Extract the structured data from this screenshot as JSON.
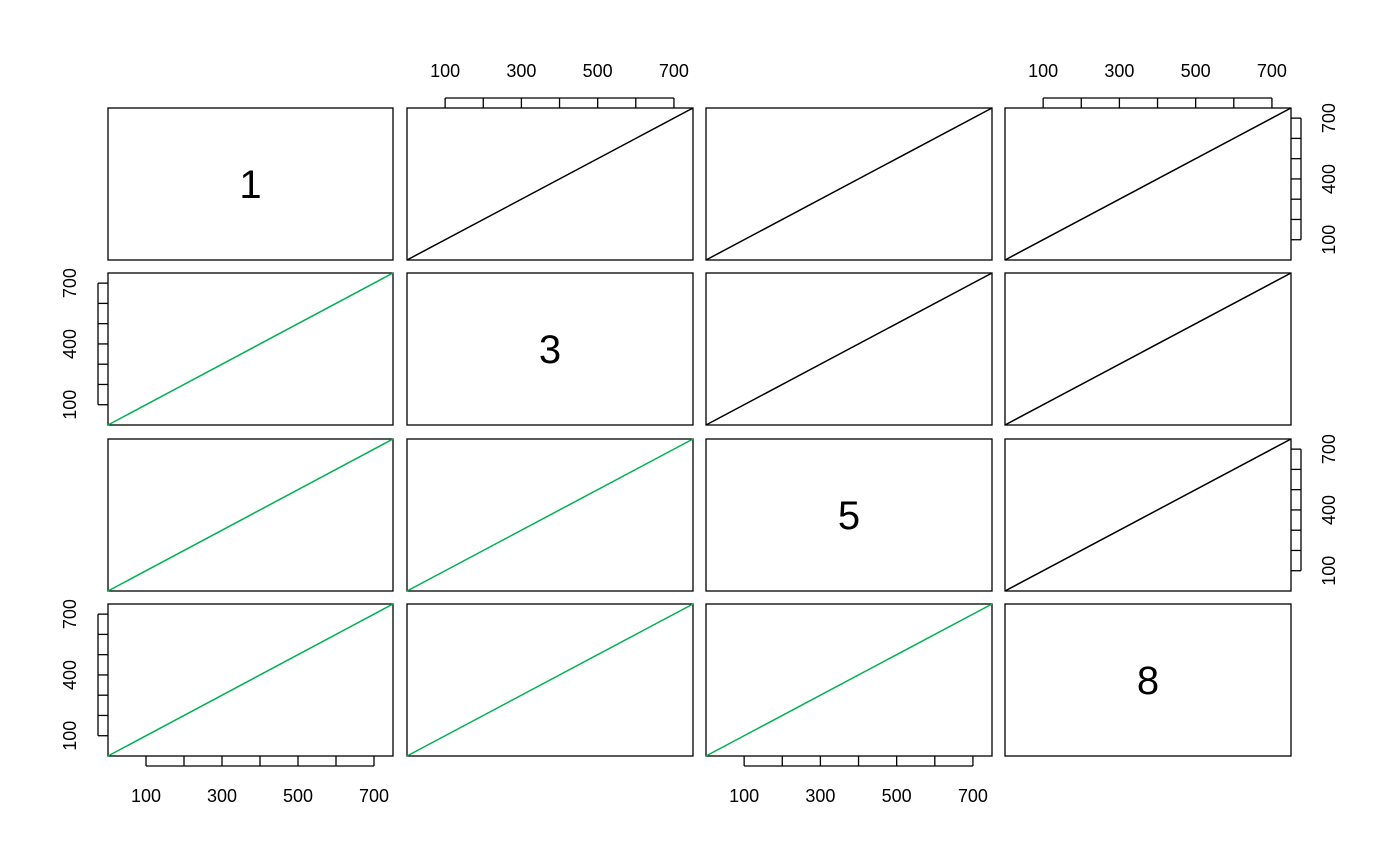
{
  "chart_data": {
    "type": "pairs",
    "labels": [
      "1",
      "3",
      "5",
      "8"
    ],
    "xlim": [
      0,
      750
    ],
    "ylim": [
      0,
      750
    ],
    "xticks": [
      100,
      {
        "value": 200,
        "label": null
      },
      300,
      {
        "value": 400,
        "label": null
      },
      500,
      {
        "value": 600,
        "label": null
      },
      700
    ],
    "yticks": [
      100,
      {
        "value": 200,
        "label": null
      },
      {
        "value": 300,
        "label": null
      },
      400,
      {
        "value": 500,
        "label": null
      },
      {
        "value": 600,
        "label": null
      },
      700
    ],
    "upper_color": "#000000",
    "lower_color": "#00b050",
    "line": {
      "x": [
        0,
        750
      ],
      "y": [
        0,
        750
      ]
    }
  }
}
